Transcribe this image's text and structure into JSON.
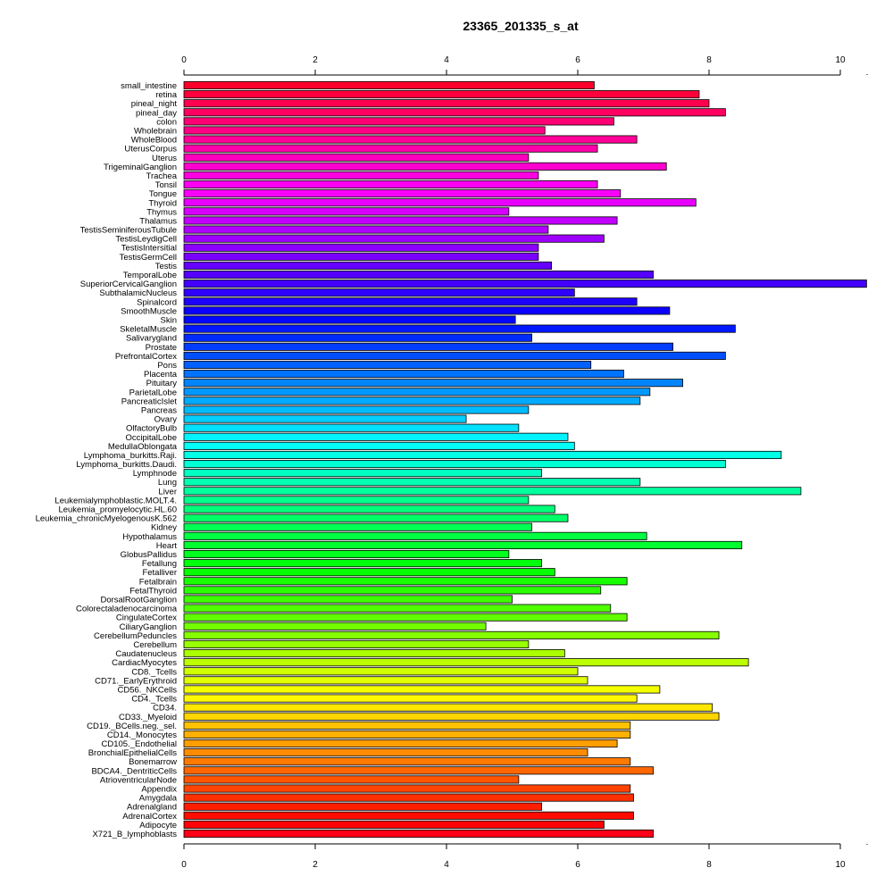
{
  "chart_data": {
    "type": "bar",
    "orientation": "horizontal",
    "title": "23365_201335_s_at",
    "xlabel": "",
    "ylabel": "",
    "xlim": [
      0,
      10
    ],
    "xticks": [
      "0",
      "2",
      "4",
      "6",
      "8",
      "10"
    ],
    "categories": [
      "small_intestine",
      "retina",
      "pineal_night",
      "pineal_day",
      "colon",
      "Wholebrain",
      "WholeBlood",
      "UterusCorpus",
      "Uterus",
      "TrigeminalGanglion",
      "Trachea",
      "Tonsil",
      "Tongue",
      "Thyroid",
      "Thymus",
      "Thalamus",
      "TestisSeminiferousTubule",
      "TestisLeydigCell",
      "TestisIntersitial",
      "TestisGermCell",
      "Testis",
      "TemporalLobe",
      "SuperiorCervicalGanglion",
      "SubthalamicNucleus",
      "Spinalcord",
      "SmoothMuscle",
      "Skin",
      "SkeletalMuscle",
      "Salivarygland",
      "Prostate",
      "PrefrontalCortex",
      "Pons",
      "Placenta",
      "Pituitary",
      "ParietalLobe",
      "PancreaticIslet",
      "Pancreas",
      "Ovary",
      "OlfactoryBulb",
      "OccipitalLobe",
      "MedullaOblongata",
      "Lymphoma_burkitts.Raji.",
      "Lymphoma_burkitts.Daudi.",
      "Lymphnode",
      "Lung",
      "Liver",
      "Leukemialymphoblastic.MOLT.4.",
      "Leukemia_promyelocytic.HL.60",
      "Leukemia_chronicMyelogenousK.562",
      "Kidney",
      "Hypothalamus",
      "Heart",
      "GlobusPallidus",
      "Fetallung",
      "Fetalliver",
      "Fetalbrain",
      "FetalThyroid",
      "DorsalRootGanglion",
      "Colorectaladenocarcinoma",
      "CingulateCortex",
      "CiliaryGanglion",
      "CerebellumPeduncles",
      "Cerebellum",
      "Caudatenucleus",
      "CardiacMyocytes",
      "CD8._Tcells",
      "CD71._EarlyErythroid",
      "CD56._NKCells",
      "CD4._Tcells",
      "CD34.",
      "CD33._Myeloid",
      "CD19._BCells.neg._sel.",
      "CD14._Monocytes",
      "CD105._Endothelial",
      "BronchialEpithelialCells",
      "Bonemarrow",
      "BDCA4._DentriticCells",
      "AtrioventricularNode",
      "Appendix",
      "Amygdala",
      "Adrenalgland",
      "AdrenalCortex",
      "Adipocyte",
      "X721_B_lymphoblasts"
    ],
    "values": [
      6.25,
      7.85,
      8.0,
      8.25,
      6.55,
      5.5,
      6.9,
      6.3,
      5.25,
      7.35,
      5.4,
      6.3,
      6.65,
      7.8,
      4.95,
      6.6,
      5.55,
      6.4,
      5.4,
      5.4,
      5.6,
      7.15,
      10.4,
      5.95,
      6.9,
      7.4,
      5.05,
      8.4,
      5.3,
      7.45,
      8.25,
      6.2,
      6.7,
      7.6,
      7.1,
      6.95,
      5.25,
      4.3,
      5.1,
      5.85,
      5.95,
      9.1,
      8.25,
      5.45,
      6.95,
      9.4,
      5.25,
      5.65,
      5.85,
      5.3,
      7.05,
      8.5,
      4.95,
      5.45,
      5.65,
      6.75,
      6.35,
      5.0,
      6.5,
      6.75,
      4.6,
      8.15,
      5.25,
      5.8,
      8.6,
      6.0,
      6.15,
      7.25,
      6.9,
      8.05,
      8.15,
      6.8,
      6.8,
      6.6,
      6.15,
      6.8,
      7.15,
      5.1,
      6.8,
      6.85,
      5.45,
      6.85,
      6.4,
      7.15
    ],
    "bar_colors": "rainbow palette, red at top through magenta, violet, blue, cyan, green, yellow, orange back to red at bottom",
    "grid": false,
    "legend": "none"
  }
}
